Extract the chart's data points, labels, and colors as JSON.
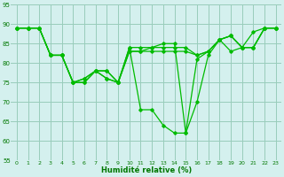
{
  "xlabel": "Humidité relative (%)",
  "background_color": "#d4f0ee",
  "grid_color": "#99ccbb",
  "line_color": "#00bb00",
  "xlim": [
    -0.5,
    23.5
  ],
  "ylim": [
    55,
    95
  ],
  "yticks": [
    55,
    60,
    65,
    70,
    75,
    80,
    85,
    90,
    95
  ],
  "xticks": [
    0,
    1,
    2,
    3,
    4,
    5,
    6,
    7,
    8,
    9,
    10,
    11,
    12,
    13,
    14,
    15,
    16,
    17,
    18,
    19,
    20,
    21,
    22,
    23
  ],
  "lines": [
    [
      89,
      89,
      89,
      82,
      82,
      75,
      75,
      78,
      78,
      75,
      83,
      83,
      83,
      83,
      83,
      83,
      82,
      83,
      86,
      83,
      84,
      88,
      89,
      89
    ],
    [
      89,
      89,
      89,
      82,
      82,
      75,
      75,
      78,
      78,
      75,
      83,
      83,
      84,
      84,
      84,
      84,
      82,
      83,
      86,
      87,
      84,
      84,
      89,
      89
    ],
    [
      89,
      89,
      89,
      82,
      82,
      75,
      76,
      78,
      76,
      75,
      84,
      84,
      84,
      85,
      85,
      62,
      81,
      83,
      86,
      87,
      84,
      84,
      89,
      89
    ],
    [
      89,
      89,
      89,
      82,
      82,
      75,
      76,
      78,
      76,
      75,
      84,
      68,
      68,
      64,
      62,
      62,
      70,
      82,
      86,
      87,
      84,
      84,
      89,
      89
    ]
  ]
}
